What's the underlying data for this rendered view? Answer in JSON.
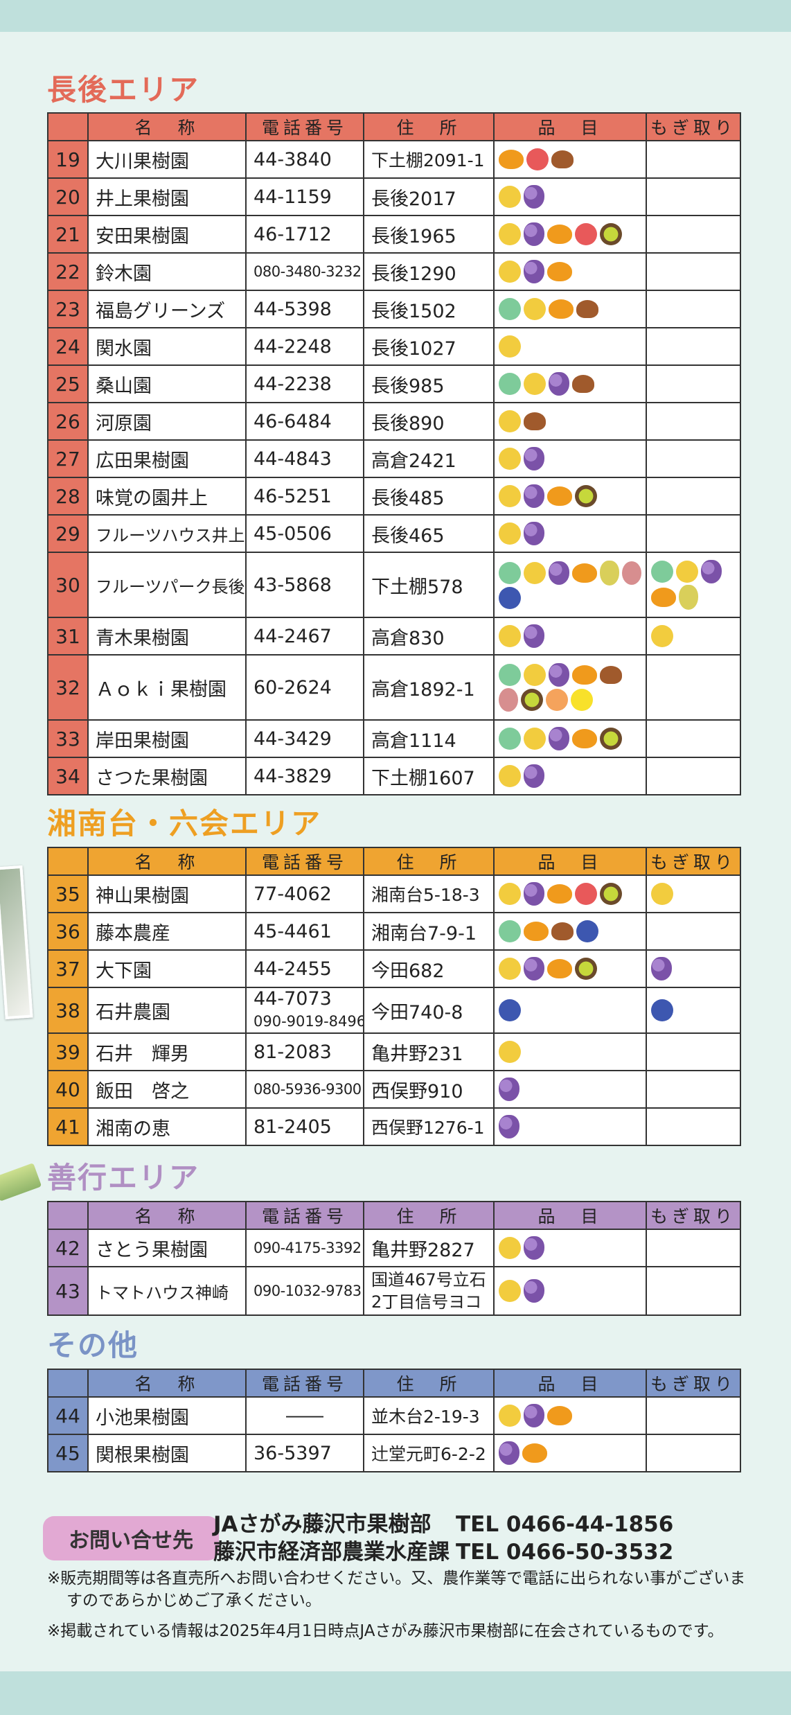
{
  "areas": [
    {
      "title": "長後エリア",
      "color": "#e57563",
      "title_color": "#e36a58",
      "headers": [
        "名　称",
        "電話番号",
        "住　所",
        "品　目",
        "もぎ取り"
      ],
      "rows": [
        {
          "no": "19",
          "name": "大川果樹園",
          "tel": "44-3840",
          "addr": "下土棚2091-1",
          "items": [
            "persimmon",
            "apple",
            "chestnut"
          ],
          "pick": []
        },
        {
          "no": "20",
          "name": "井上果樹園",
          "tel": "44-1159",
          "addr": "長後2017",
          "items": [
            "japanese-pear",
            "grape"
          ],
          "pick": []
        },
        {
          "no": "21",
          "name": "安田果樹園",
          "tel": "46-1712",
          "addr": "長後1965",
          "items": [
            "japanese-pear",
            "grape",
            "persimmon",
            "apple",
            "kiwi"
          ],
          "pick": []
        },
        {
          "no": "22",
          "name": "鈴木園",
          "tel": "080-3480-3232",
          "addr": "長後1290",
          "items": [
            "japanese-pear",
            "grape",
            "persimmon"
          ],
          "pick": []
        },
        {
          "no": "23",
          "name": "福島グリーンズ",
          "tel": "44-5398",
          "addr": "長後1502",
          "items": [
            "melon",
            "japanese-pear",
            "persimmon",
            "chestnut"
          ],
          "pick": []
        },
        {
          "no": "24",
          "name": "関水園",
          "tel": "44-2248",
          "addr": "長後1027",
          "items": [
            "japanese-pear"
          ],
          "pick": []
        },
        {
          "no": "25",
          "name": "桑山園",
          "tel": "44-2238",
          "addr": "長後985",
          "items": [
            "melon",
            "japanese-pear",
            "grape",
            "chestnut"
          ],
          "pick": []
        },
        {
          "no": "26",
          "name": "河原園",
          "tel": "46-6484",
          "addr": "長後890",
          "items": [
            "japanese-pear",
            "chestnut"
          ],
          "pick": []
        },
        {
          "no": "27",
          "name": "広田果樹園",
          "tel": "44-4843",
          "addr": "高倉2421",
          "items": [
            "japanese-pear",
            "grape"
          ],
          "pick": []
        },
        {
          "no": "28",
          "name": "味覚の園井上",
          "tel": "46-5251",
          "addr": "長後485",
          "items": [
            "japanese-pear",
            "grape",
            "persimmon",
            "kiwi"
          ],
          "pick": []
        },
        {
          "no": "29",
          "name": "フルーツハウス井上",
          "tel": "45-0506",
          "addr": "長後465",
          "items": [
            "japanese-pear",
            "grape"
          ],
          "pick": []
        },
        {
          "no": "30",
          "name": "フルーツパーク長後",
          "tel": "43-5868",
          "addr": "下土棚578",
          "items": [
            "melon",
            "japanese-pear",
            "grape",
            "persimmon",
            "western-pear",
            "fig",
            "blueberry"
          ],
          "pick": [
            "melon",
            "japanese-pear",
            "grape",
            "persimmon",
            "western-pear"
          ]
        },
        {
          "no": "31",
          "name": "青木果樹園",
          "tel": "44-2467",
          "addr": "高倉830",
          "items": [
            "japanese-pear",
            "grape"
          ],
          "pick": [
            "japanese-pear"
          ]
        },
        {
          "no": "32",
          "name": "Ａｏｋｉ果樹園",
          "tel": "60-2624",
          "addr": "高倉1892-1",
          "items": [
            "melon",
            "japanese-pear",
            "grape",
            "persimmon",
            "chestnut",
            "fig",
            "kiwi",
            "peach",
            "citrus"
          ],
          "pick": []
        },
        {
          "no": "33",
          "name": "岸田果樹園",
          "tel": "44-3429",
          "addr": "高倉1114",
          "items": [
            "melon",
            "japanese-pear",
            "grape",
            "persimmon",
            "kiwi"
          ],
          "pick": []
        },
        {
          "no": "34",
          "name": "さつた果樹園",
          "tel": "44-3829",
          "addr": "下土棚1607",
          "items": [
            "japanese-pear",
            "grape"
          ],
          "pick": []
        }
      ]
    },
    {
      "title": "湘南台・六会エリア",
      "color": "#efa431",
      "title_color": "#ee9f22",
      "headers": [
        "名　称",
        "電話番号",
        "住　所",
        "品　目",
        "もぎ取り"
      ],
      "rows": [
        {
          "no": "35",
          "name": "神山果樹園",
          "tel": "77-4062",
          "addr": "湘南台5-18-3",
          "items": [
            "japanese-pear",
            "grape",
            "persimmon",
            "apple",
            "kiwi"
          ],
          "pick": [
            "japanese-pear"
          ]
        },
        {
          "no": "36",
          "name": "藤本農産",
          "tel": "45-4461",
          "addr": "湘南台7-9-1",
          "items": [
            "melon",
            "persimmon",
            "chestnut",
            "blueberry"
          ],
          "pick": []
        },
        {
          "no": "37",
          "name": "大下園",
          "tel": "44-2455",
          "addr": "今田682",
          "items": [
            "japanese-pear",
            "grape",
            "persimmon",
            "kiwi"
          ],
          "pick": [
            "grape"
          ]
        },
        {
          "no": "38",
          "name": "石井農園",
          "tel": "44-7073",
          "tel2": "090-9019-8496",
          "addr": "今田740-8",
          "items": [
            "blueberry"
          ],
          "pick": [
            "blueberry"
          ]
        },
        {
          "no": "39",
          "name": "石井　輝男",
          "tel": "81-2083",
          "addr": "亀井野231",
          "items": [
            "japanese-pear"
          ],
          "pick": []
        },
        {
          "no": "40",
          "name": "飯田　啓之",
          "tel": "080-5936-9300",
          "addr": "西俣野910",
          "items": [
            "grape"
          ],
          "pick": []
        },
        {
          "no": "41",
          "name": "湘南の恵",
          "tel": "81-2405",
          "addr": "西俣野1276-1",
          "items": [
            "grape"
          ],
          "pick": []
        }
      ]
    },
    {
      "title": "善行エリア",
      "color": "#b493c6",
      "title_color": "#b08fc3",
      "headers": [
        "名　称",
        "電話番号",
        "住　所",
        "品　目",
        "もぎ取り"
      ],
      "rows": [
        {
          "no": "42",
          "name": "さとう果樹園",
          "tel": "090-4175-3392",
          "addr": "亀井野2827",
          "items": [
            "japanese-pear",
            "grape"
          ],
          "pick": []
        },
        {
          "no": "43",
          "name": "トマトハウス神崎",
          "tel": "090-1032-9783",
          "addr": "国道467号立石",
          "addr2": "2丁目信号ヨコ",
          "items": [
            "japanese-pear",
            "grape"
          ],
          "pick": []
        }
      ]
    },
    {
      "title": "その他",
      "color": "#7f97c9",
      "title_color": "#7a93c6",
      "headers": [
        "名　称",
        "電話番号",
        "住　所",
        "品　目",
        "もぎ取り"
      ],
      "rows": [
        {
          "no": "44",
          "name": "小池果樹園",
          "tel": "――",
          "addr": "並木台2-19-3",
          "items": [
            "japanese-pear",
            "grape",
            "persimmon"
          ],
          "pick": []
        },
        {
          "no": "45",
          "name": "関根果樹園",
          "tel": "36-5397",
          "addr": "辻堂元町6-2-2",
          "items": [
            "grape",
            "persimmon"
          ],
          "pick": []
        }
      ]
    }
  ],
  "contact": {
    "badge": "お問い合せ先",
    "lines": [
      {
        "name": "JAさがみ藤沢市果樹部",
        "tel": "TEL 0466-44-1856"
      },
      {
        "name": "藤沢市経済部農業水産課",
        "tel": "TEL 0466-50-3532"
      }
    ]
  },
  "notes": [
    "※販売期間等は各直売所へお問い合わせください。又、農作業等で電話に出られない事がございますのであらかじめご了承ください。",
    "※掲載されている情報は2025年4月1日時点JAさがみ藤沢市果樹部に在会されているものです。"
  ]
}
